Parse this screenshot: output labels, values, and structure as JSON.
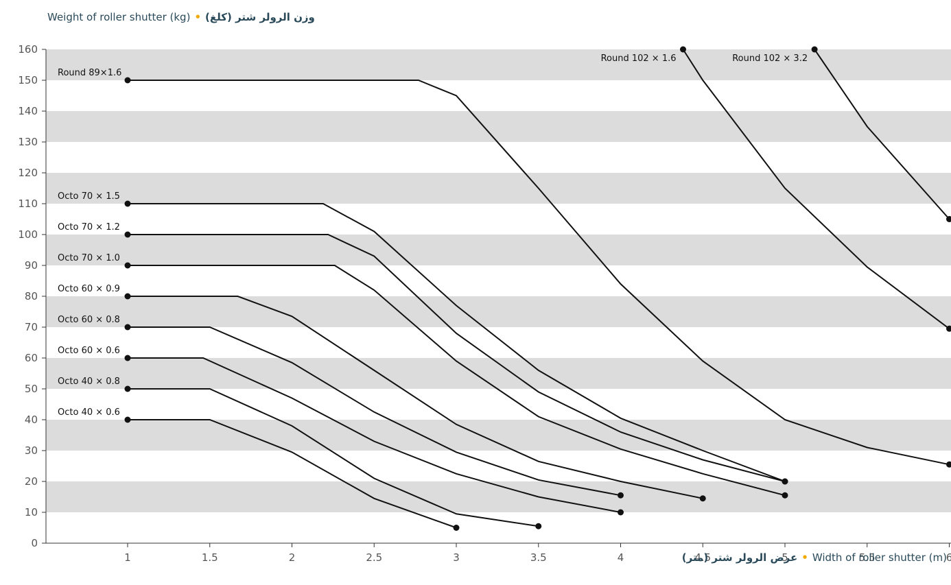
{
  "chart_data": {
    "type": "line",
    "title_en": "Weight of roller shutter (kg)",
    "title_ar": "وزن الرولر شتر (كلغ)",
    "xlabel_en": "Width of roller shutter (m)",
    "xlabel_ar": "عرض الرولر شتر (متر)",
    "xlim": [
      0.5,
      6
    ],
    "ylim": [
      0,
      160
    ],
    "x_ticks": [
      "1",
      "1.5",
      "2",
      "2.5",
      "3",
      "3.5",
      "4",
      "4.5",
      "5",
      "5.5",
      "6"
    ],
    "y_ticks": [
      "0",
      "10",
      "20",
      "30",
      "40",
      "50",
      "60",
      "70",
      "80",
      "90",
      "100",
      "110",
      "120",
      "130",
      "140",
      "150",
      "160"
    ],
    "banded_background": true,
    "series": [
      {
        "name": "Round 89×1.6",
        "points": [
          [
            1,
            150
          ],
          [
            2.77,
            150
          ],
          [
            3,
            145
          ],
          [
            3.5,
            115
          ],
          [
            4,
            84
          ],
          [
            4.5,
            59
          ],
          [
            5,
            40
          ],
          [
            5.5,
            31
          ],
          [
            6,
            25.5
          ]
        ]
      },
      {
        "name": "Round 102 × 1.6",
        "points": [
          [
            4.38,
            160
          ],
          [
            4.5,
            150
          ],
          [
            5,
            115
          ],
          [
            5.5,
            89.5
          ],
          [
            6,
            69.5
          ]
        ]
      },
      {
        "name": "Round 102 × 3.2",
        "points": [
          [
            5.18,
            160
          ],
          [
            5.5,
            135
          ],
          [
            6,
            105
          ]
        ]
      },
      {
        "name": "Octo 70 × 1.5",
        "points": [
          [
            1,
            110
          ],
          [
            2.19,
            110
          ],
          [
            2.5,
            101
          ],
          [
            3,
            77
          ],
          [
            3.5,
            56
          ],
          [
            4,
            40.5
          ],
          [
            4.5,
            30
          ],
          [
            5,
            20
          ]
        ]
      },
      {
        "name": "Octo 70 × 1.2",
        "points": [
          [
            1,
            100
          ],
          [
            2.22,
            100
          ],
          [
            2.5,
            93
          ],
          [
            3,
            68
          ],
          [
            3.5,
            49
          ],
          [
            4,
            36
          ],
          [
            4.5,
            27
          ],
          [
            5,
            20
          ]
        ]
      },
      {
        "name": "Octo 70 × 1.0",
        "points": [
          [
            1,
            90
          ],
          [
            2.26,
            90
          ],
          [
            2.5,
            82
          ],
          [
            3,
            59
          ],
          [
            3.5,
            41
          ],
          [
            4,
            30.5
          ],
          [
            4.5,
            22.5
          ],
          [
            5,
            15.5
          ]
        ]
      },
      {
        "name": "Octo 60 × 0.9",
        "points": [
          [
            1,
            80
          ],
          [
            1.67,
            80
          ],
          [
            2,
            73.5
          ],
          [
            2.5,
            56
          ],
          [
            3,
            38.5
          ],
          [
            3.5,
            26.5
          ],
          [
            4,
            20
          ],
          [
            4.5,
            14.5
          ]
        ]
      },
      {
        "name": "Octo 60 × 0.8",
        "points": [
          [
            1,
            70
          ],
          [
            1.5,
            70
          ],
          [
            2,
            58.5
          ],
          [
            2.5,
            42.5
          ],
          [
            3,
            29.5
          ],
          [
            3.5,
            20.5
          ],
          [
            4,
            15.5
          ]
        ]
      },
      {
        "name": "Octo 60 × 0.6",
        "points": [
          [
            1,
            60
          ],
          [
            1.46,
            60
          ],
          [
            2,
            47
          ],
          [
            2.5,
            33
          ],
          [
            3,
            22.5
          ],
          [
            3.5,
            15
          ],
          [
            4,
            10
          ]
        ]
      },
      {
        "name": "Octo 40 × 0.8",
        "points": [
          [
            1,
            50
          ],
          [
            1.5,
            50
          ],
          [
            2,
            38
          ],
          [
            2.5,
            21
          ],
          [
            3,
            9.5
          ],
          [
            3.5,
            5.5
          ]
        ]
      },
      {
        "name": "Octo 40 × 0.6",
        "points": [
          [
            1,
            40
          ],
          [
            1.5,
            40
          ],
          [
            2,
            29.5
          ],
          [
            2.5,
            14.5
          ],
          [
            3,
            5
          ]
        ]
      }
    ]
  }
}
